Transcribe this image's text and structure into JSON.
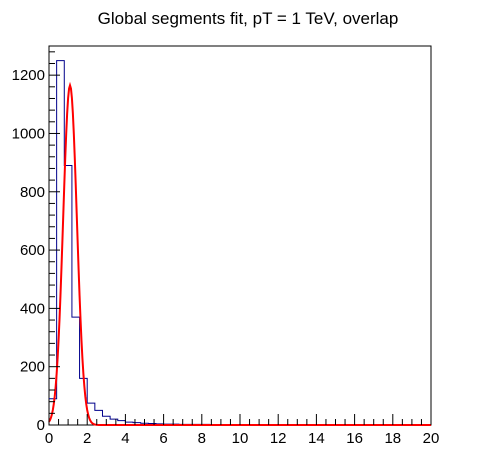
{
  "chart_data": {
    "type": "histogram",
    "title": "Global segments fit, pT = 1 TeV, overlap",
    "xlabel": "",
    "ylabel": "",
    "xlim": [
      0,
      20
    ],
    "ylim": [
      0,
      1300
    ],
    "x_ticks": [
      0,
      2,
      4,
      6,
      8,
      10,
      12,
      14,
      16,
      18,
      20
    ],
    "y_ticks": [
      0,
      200,
      400,
      600,
      800,
      1000,
      1200
    ],
    "grid": false,
    "legend": "none",
    "histogram": {
      "name": "",
      "bin_width": 0.4,
      "bin_edges_start": 0,
      "values": [
        90,
        1250,
        890,
        370,
        160,
        75,
        50,
        30,
        20,
        15,
        10,
        8,
        6,
        5,
        4,
        3,
        3,
        2,
        2,
        2,
        2,
        1,
        1,
        1,
        1,
        1,
        1,
        1,
        1,
        1,
        1,
        1,
        1,
        1,
        1,
        1,
        1,
        1,
        1,
        1,
        1,
        1,
        1,
        1,
        1,
        1,
        1,
        1,
        1,
        1
      ],
      "color": "#00008b"
    },
    "fit": {
      "type": "gaussian",
      "amplitude": 1165,
      "mean": 1.1,
      "sigma": 0.36,
      "color": "#ff0000"
    }
  }
}
